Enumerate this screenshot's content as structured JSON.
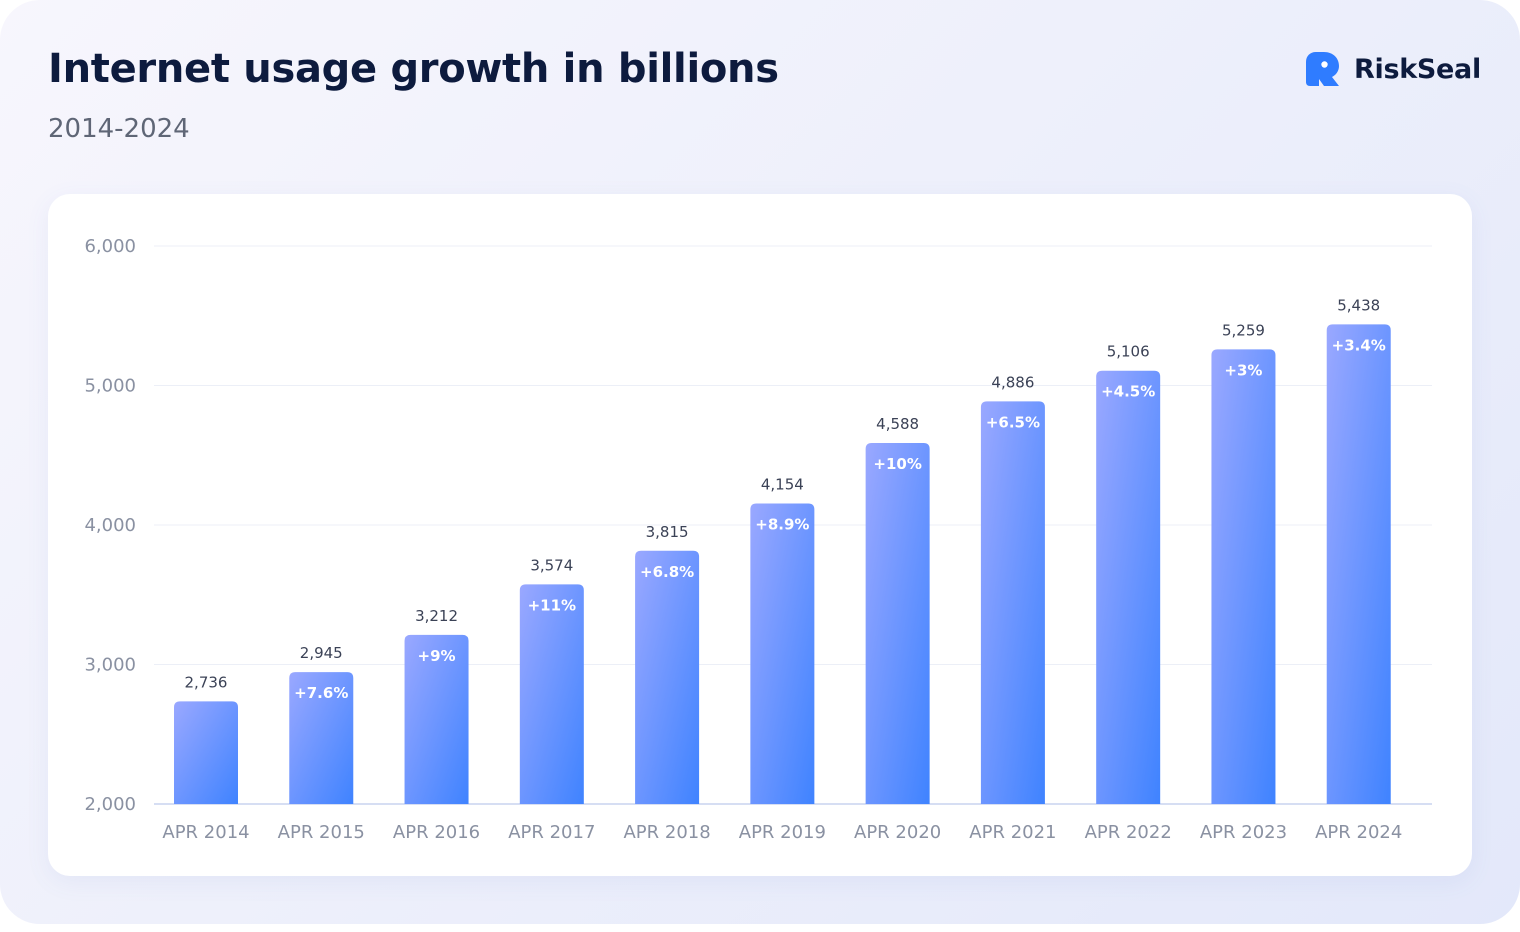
{
  "title": "Internet usage growth in billions",
  "subtitle": "2014-2024",
  "brand": {
    "name": "RiskSeal",
    "logo_icon": "riskseal-logo-icon",
    "color": "#2f7cff"
  },
  "colors": {
    "bar_top": "#9aa8ff",
    "bar_bottom": "#3f83ff",
    "title": "#0d1b3e",
    "gridline": "#eceff7",
    "axis": "#c9d3ef"
  },
  "chart_data": {
    "type": "bar",
    "title": "Internet usage growth in billions",
    "subtitle": "2014-2024",
    "categories": [
      "APR 2014",
      "APR 2015",
      "APR 2016",
      "APR 2017",
      "APR 2018",
      "APR 2019",
      "APR 2020",
      "APR 2021",
      "APR 2022",
      "APR 2023",
      "APR 2024"
    ],
    "values": [
      2736,
      2945,
      3212,
      3574,
      3815,
      4154,
      4588,
      4886,
      5106,
      5259,
      5438
    ],
    "value_labels": [
      "2,736",
      "2,945",
      "3,212",
      "3,574",
      "3,815",
      "4,154",
      "4,588",
      "4,886",
      "5,106",
      "5,259",
      "5,438"
    ],
    "growth_labels": [
      "",
      "+7.6%",
      "+9%",
      "+11%",
      "+6.8%",
      "+8.9%",
      "+10%",
      "+6.5%",
      "+4.5%",
      "+3%",
      "+3.4%"
    ],
    "ylim": [
      2000,
      6000
    ],
    "yticks": [
      2000,
      3000,
      4000,
      5000,
      6000
    ],
    "ytick_labels": [
      "2,000",
      "3,000",
      "4,000",
      "5,000",
      "6,000"
    ],
    "xlabel": "",
    "ylabel": "",
    "grid": true,
    "legend": "none"
  }
}
